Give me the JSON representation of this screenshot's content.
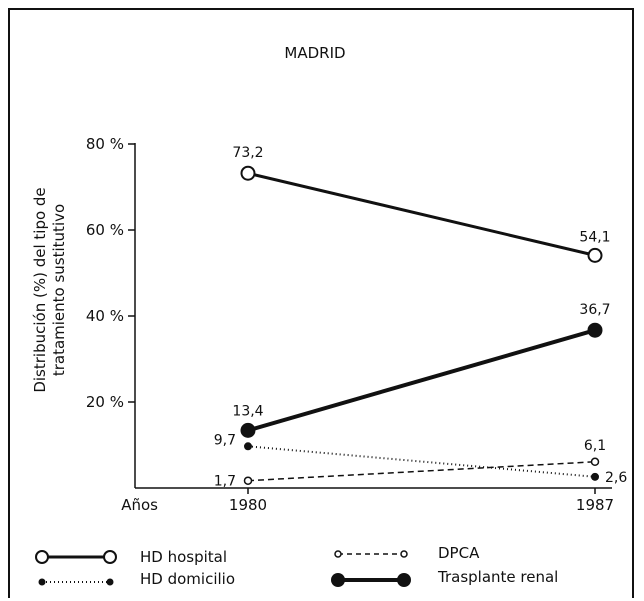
{
  "chart_data": {
    "type": "line",
    "title": "MADRID",
    "ylabel_line1": "Distribución (%) del tipo de",
    "ylabel_line2": "tratamiento sustitutivo",
    "xlabel": "Años",
    "x": [
      "1980",
      "1987"
    ],
    "y_ticks": [
      "20 %",
      "40 %",
      "60 %",
      "80 %"
    ],
    "ylim": [
      0,
      80
    ],
    "series": [
      {
        "name": "HD hospital",
        "values": [
          73.2,
          54.1
        ],
        "labels": [
          "73,2",
          "54,1"
        ],
        "style": "solid",
        "marker": "open-circle"
      },
      {
        "name": "HD domicilio",
        "values": [
          9.7,
          2.6
        ],
        "labels": [
          "9,7",
          "2,6"
        ],
        "style": "dotted",
        "marker": "small-filled-circle"
      },
      {
        "name": "DPCA",
        "values": [
          1.7,
          6.1
        ],
        "labels": [
          "1,7",
          "6,1"
        ],
        "style": "dashed",
        "marker": "small-open-circle"
      },
      {
        "name": "Trasplante renal",
        "values": [
          13.4,
          36.7
        ],
        "labels": [
          "13,4",
          "36,7"
        ],
        "style": "thick-solid",
        "marker": "large-filled-circle"
      }
    ],
    "grid": false,
    "legend": "bottom"
  }
}
